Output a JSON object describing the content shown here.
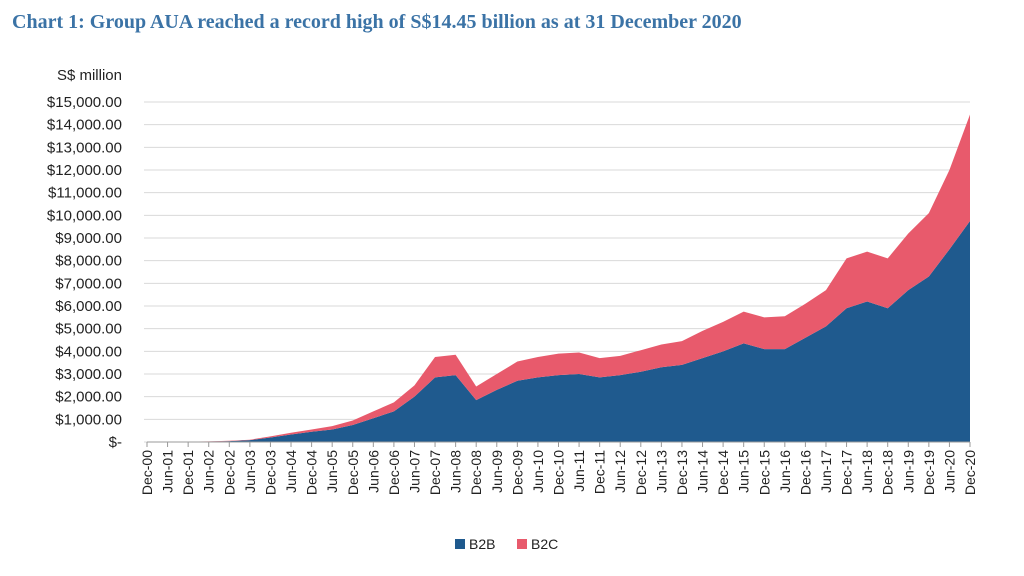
{
  "chart_data": {
    "type": "stacked-area",
    "title": "Chart 1: Group AUA reached a record high of S$14.45 billion as at 31 December 2020",
    "y_label": "S$ million",
    "categories": [
      "Dec-00",
      "Jun-01",
      "Dec-01",
      "Jun-02",
      "Dec-02",
      "Jun-03",
      "Dec-03",
      "Jun-04",
      "Dec-04",
      "Jun-05",
      "Dec-05",
      "Jun-06",
      "Dec-06",
      "Jun-07",
      "Dec-07",
      "Jun-08",
      "Dec-08",
      "Jun-09",
      "Dec-09",
      "Jun-10",
      "Dec-10",
      "Jun-11",
      "Dec-11",
      "Jun-12",
      "Dec-12",
      "Jun-13",
      "Dec-13",
      "Jun-14",
      "Dec-14",
      "Jun-15",
      "Dec-15",
      "Jun-16",
      "Dec-16",
      "Jun-17",
      "Dec-17",
      "Jun-18",
      "Dec-18",
      "Jun-19",
      "Dec-19",
      "Jun-20",
      "Dec-20"
    ],
    "series": [
      {
        "name": "B2B",
        "color": "#1f5a8e",
        "values": [
          0,
          0,
          10,
          20,
          40,
          80,
          200,
          330,
          450,
          550,
          750,
          1050,
          1350,
          2000,
          2850,
          2950,
          1850,
          2300,
          2700,
          2850,
          2950,
          3000,
          2850,
          2950,
          3100,
          3300,
          3400,
          3700,
          4000,
          4350,
          4100,
          4100,
          4600,
          5100,
          5900,
          6200,
          5900,
          6700,
          7300,
          8500,
          9750
        ]
      },
      {
        "name": "B2C",
        "color": "#e85a6c",
        "values": [
          0,
          0,
          5,
          10,
          15,
          20,
          50,
          80,
          100,
          150,
          200,
          300,
          400,
          500,
          900,
          900,
          600,
          700,
          850,
          900,
          950,
          950,
          850,
          850,
          950,
          1000,
          1050,
          1200,
          1300,
          1400,
          1400,
          1450,
          1500,
          1600,
          2200,
          2200,
          2200,
          2500,
          2800,
          3500,
          4700
        ]
      }
    ],
    "ylim": [
      0,
      15000
    ],
    "yticks": [
      {
        "value": 0,
        "label": "$-"
      },
      {
        "value": 1000,
        "label": "$1,000.00"
      },
      {
        "value": 2000,
        "label": "$2,000.00"
      },
      {
        "value": 3000,
        "label": "$3,000.00"
      },
      {
        "value": 4000,
        "label": "$4,000.00"
      },
      {
        "value": 5000,
        "label": "$5,000.00"
      },
      {
        "value": 6000,
        "label": "$6,000.00"
      },
      {
        "value": 7000,
        "label": "$7,000.00"
      },
      {
        "value": 8000,
        "label": "$8,000.00"
      },
      {
        "value": 9000,
        "label": "$9,000.00"
      },
      {
        "value": 10000,
        "label": "$10,000.00"
      },
      {
        "value": 11000,
        "label": "$11,000.00"
      },
      {
        "value": 12000,
        "label": "$12,000.00"
      },
      {
        "value": 13000,
        "label": "$13,000.00"
      },
      {
        "value": 14000,
        "label": "$14,000.00"
      },
      {
        "value": 15000,
        "label": "$15,000.00"
      }
    ],
    "grid": true,
    "legend": "bottom"
  }
}
